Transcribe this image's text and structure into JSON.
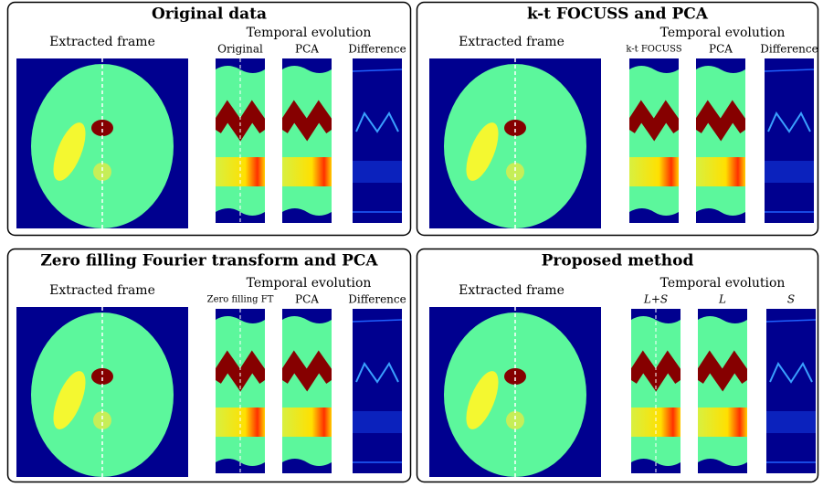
{
  "panels": [
    {
      "title": "Original data",
      "frame_label": "Extracted frame",
      "temporal_label": "Temporal evolution",
      "columns": [
        "Original",
        "PCA",
        "Difference"
      ]
    },
    {
      "title": "k-t FOCUSS and PCA",
      "frame_label": "Extracted frame",
      "temporal_label": "Temporal evolution",
      "columns": [
        "k-t FOCUSS",
        "PCA",
        "Difference"
      ]
    },
    {
      "title": "Zero filling Fourier transform and PCA",
      "frame_label": "Extracted frame",
      "temporal_label": "Temporal evolution",
      "columns": [
        "Zero filling FT",
        "PCA",
        "Difference"
      ]
    },
    {
      "title": "Proposed method",
      "frame_label": "Extracted frame",
      "temporal_label": "Temporal evolution",
      "columns": [
        "L+S",
        "L",
        "S"
      ]
    }
  ]
}
